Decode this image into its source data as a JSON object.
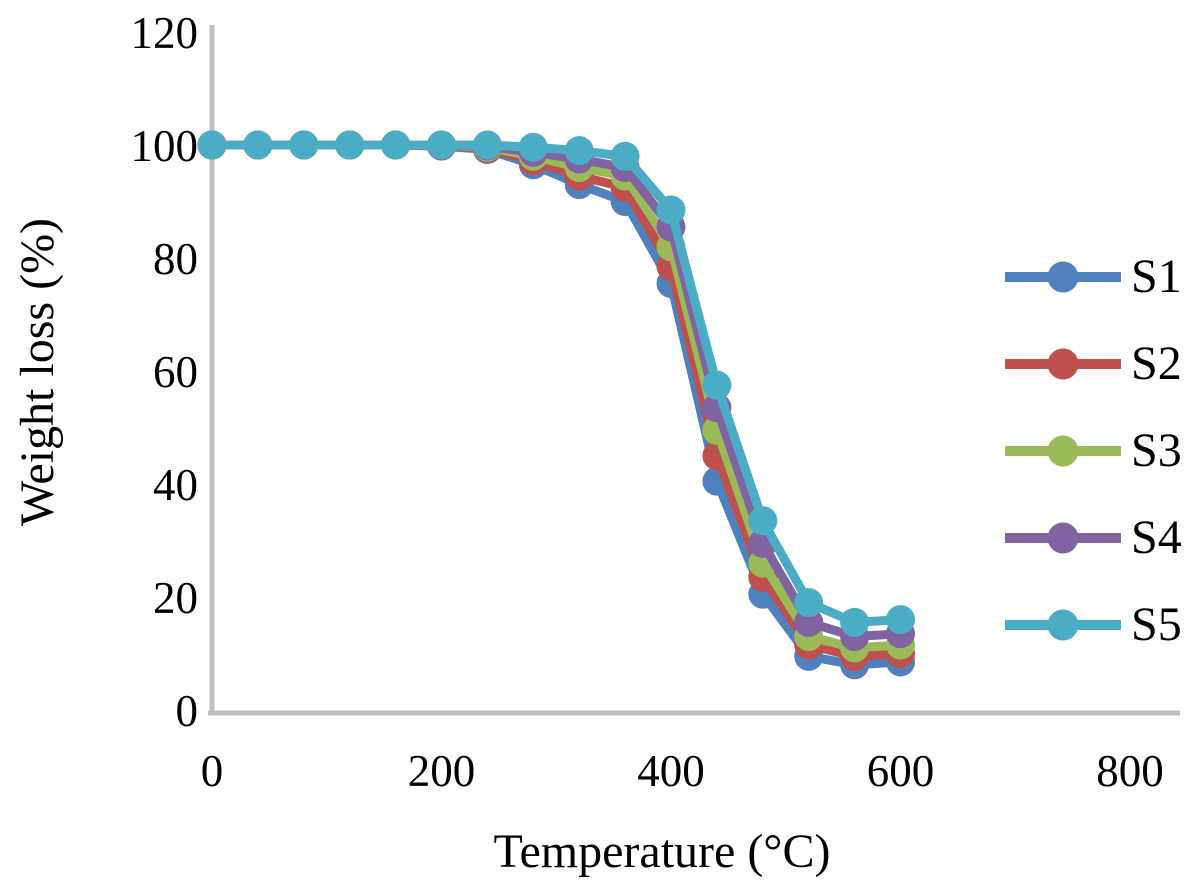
{
  "chart_data": {
    "type": "line",
    "title": "",
    "xlabel": "Temperature (°C)",
    "ylabel": "Weight loss (%)",
    "x": [
      0,
      40,
      80,
      120,
      160,
      200,
      240,
      280,
      320,
      360,
      400,
      440,
      480,
      520,
      560,
      600
    ],
    "series": [
      {
        "name": "S1",
        "color": "#4F81BD",
        "values": [
          100,
          100,
          100,
          100,
          100,
          99.8,
          99.2,
          96.5,
          93,
          90,
          75.5,
          40.5,
          20.5,
          9.5,
          8,
          8.5
        ]
      },
      {
        "name": "S2",
        "color": "#C0504D",
        "values": [
          100,
          100,
          100,
          100,
          100,
          99.9,
          99.4,
          97.2,
          94.5,
          92.5,
          78.5,
          45,
          23.5,
          11.5,
          9.5,
          10
        ]
      },
      {
        "name": "S3",
        "color": "#9BBB59",
        "values": [
          100,
          100,
          100,
          100,
          100,
          100,
          99.6,
          98,
          96,
          94.5,
          82,
          49.5,
          26,
          13,
          11,
          11.5
        ]
      },
      {
        "name": "S4",
        "color": "#8064A2",
        "values": [
          100,
          100,
          100,
          100,
          100,
          100,
          99.8,
          98.7,
          97.5,
          96,
          85.5,
          53.5,
          29.5,
          15.5,
          13,
          13.5
        ]
      },
      {
        "name": "S5",
        "color": "#4BACC6",
        "values": [
          100,
          100,
          100,
          100,
          100,
          100,
          100,
          99.6,
          99,
          98,
          88.5,
          57.5,
          33.5,
          19,
          15.5,
          16
        ]
      }
    ],
    "xticks": [
      0,
      200,
      400,
      600,
      800
    ],
    "yticks": [
      0,
      20,
      40,
      60,
      80,
      100,
      120
    ],
    "xlim": [
      0,
      800
    ],
    "ylim": [
      0,
      120
    ],
    "grid": false,
    "legend_position": "right",
    "axis_color": "#C0C0C0",
    "text_color": "#000000",
    "marker": "circle"
  }
}
